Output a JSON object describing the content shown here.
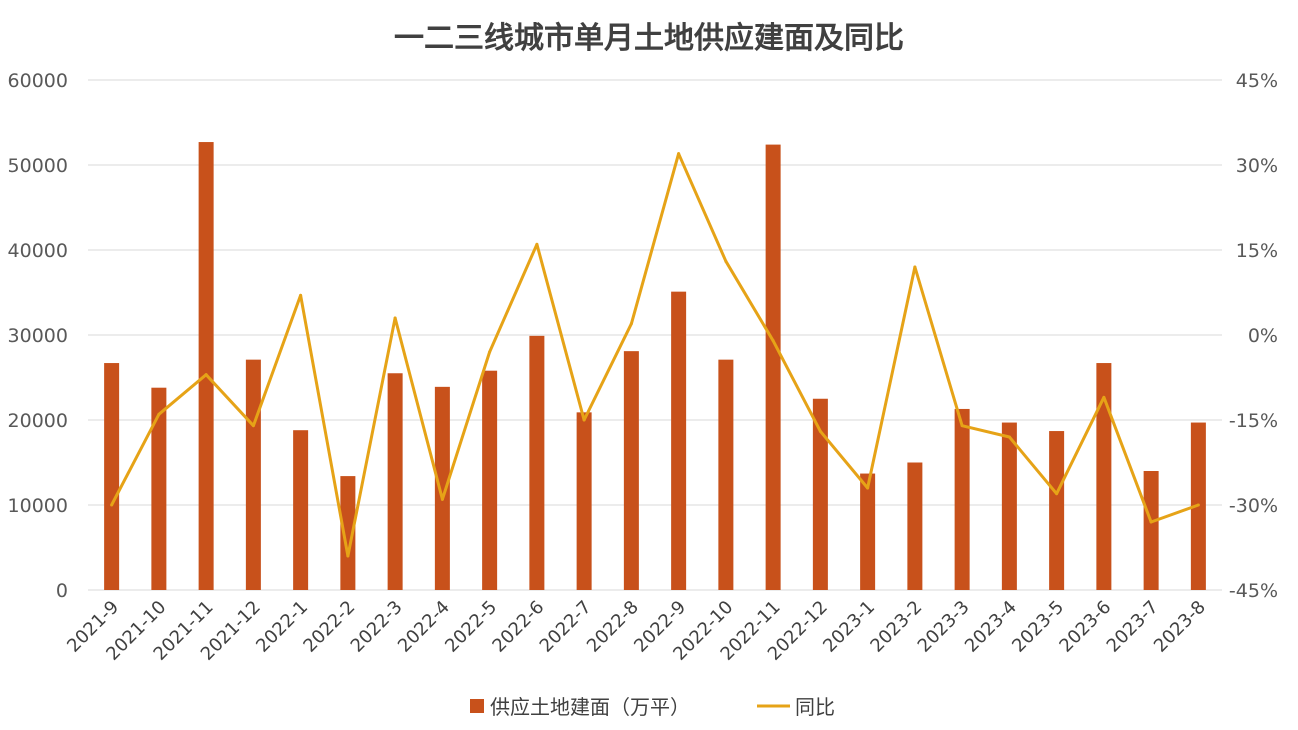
{
  "chart_data": {
    "type": "bar",
    "title": "一二三线城市单月土地供应建面及同比",
    "categories": [
      "2021-9",
      "2021-10",
      "2021-11",
      "2021-12",
      "2022-1",
      "2022-2",
      "2022-3",
      "2022-4",
      "2022-5",
      "2022-6",
      "2022-7",
      "2022-8",
      "2022-9",
      "2022-10",
      "2022-11",
      "2022-12",
      "2023-1",
      "2023-2",
      "2023-3",
      "2023-4",
      "2023-5",
      "2023-6",
      "2023-7",
      "2023-8"
    ],
    "y_left": {
      "min": 0,
      "max": 60000,
      "ticks": [
        "0",
        "10000",
        "20000",
        "30000",
        "40000",
        "50000",
        "60000"
      ]
    },
    "y_right": {
      "min": -45,
      "max": 45,
      "ticks": [
        "-45%",
        "-30%",
        "-15%",
        "0%",
        "15%",
        "30%",
        "45%"
      ]
    },
    "grid": true,
    "legend_position": "bottom",
    "series": [
      {
        "name": "供应土地建面（万平）",
        "type": "bar",
        "axis": "left",
        "color": "#c8511b",
        "values": [
          26700,
          23800,
          52700,
          27100,
          18800,
          13400,
          25500,
          23900,
          25800,
          29900,
          20900,
          28100,
          35100,
          27100,
          52400,
          22500,
          13700,
          15000,
          21300,
          19700,
          18700,
          26700,
          14000,
          19700
        ]
      },
      {
        "name": "同比",
        "type": "line",
        "axis": "right",
        "color": "#e6a317",
        "values": [
          -30,
          -14,
          -7,
          -16,
          7,
          -39,
          3,
          -29,
          -3,
          16,
          -15,
          2,
          32,
          13,
          -1,
          -17,
          -27,
          12,
          -16,
          -18,
          -28,
          -11,
          -33,
          -30
        ]
      }
    ]
  }
}
